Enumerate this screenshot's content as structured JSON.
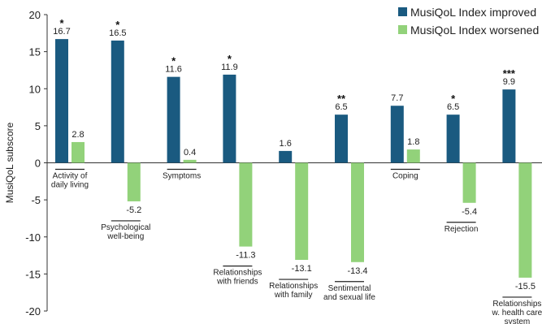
{
  "chart_data": {
    "type": "bar",
    "title": "",
    "xlabel": "",
    "ylabel": "MusiQoL subscore",
    "ylim": [
      -20,
      20
    ],
    "yticks": [
      20,
      15,
      10,
      5,
      0,
      -5,
      -10,
      -15,
      -20
    ],
    "grid": false,
    "legend_position": "top-right",
    "categories": [
      "Activity of daily living",
      "Psychological well-being",
      "Symptoms",
      "Relationships with friends",
      "Relationships with family",
      "Sentimental and sexual life",
      "Coping",
      "Rejection",
      "Relationships w. health care system"
    ],
    "category_label_lines": [
      [
        "Activity of",
        "daily living"
      ],
      [
        "Psychological",
        "well-being"
      ],
      [
        "Symptoms"
      ],
      [
        "Relationships",
        "with friends"
      ],
      [
        "Relationships",
        "with family"
      ],
      [
        "Sentimental",
        "and sexual life"
      ],
      [
        "Coping"
      ],
      [
        "Rejection"
      ],
      [
        "Relationships",
        "w. health care",
        "system"
      ]
    ],
    "category_label_side": [
      "above",
      "below",
      "above",
      "below",
      "below",
      "below",
      "above",
      "below",
      "below"
    ],
    "series": [
      {
        "name": "MusiQoL Index improved",
        "color": "#1a5a80",
        "values": [
          16.7,
          16.5,
          11.6,
          11.9,
          1.6,
          6.5,
          7.7,
          6.5,
          9.9
        ],
        "labels": [
          "16.7",
          "16.5",
          "11.6",
          "11.9",
          "1.6",
          "6.5",
          "7.7",
          "6.5",
          "9.9"
        ]
      },
      {
        "name": "MusiQoL Index worsened",
        "color": "#92d27a",
        "values": [
          2.8,
          -5.2,
          0.4,
          -11.3,
          -13.1,
          -13.4,
          1.8,
          -5.4,
          -15.5
        ],
        "labels": [
          "2.8",
          "-5.2",
          "0.4",
          "-11.3",
          "-13.1",
          "-13.4",
          "1.8",
          "-5.4",
          "-15.5"
        ]
      }
    ],
    "significance": [
      "*",
      "*",
      "*",
      "*",
      "",
      "**",
      "",
      "*",
      "***"
    ]
  }
}
